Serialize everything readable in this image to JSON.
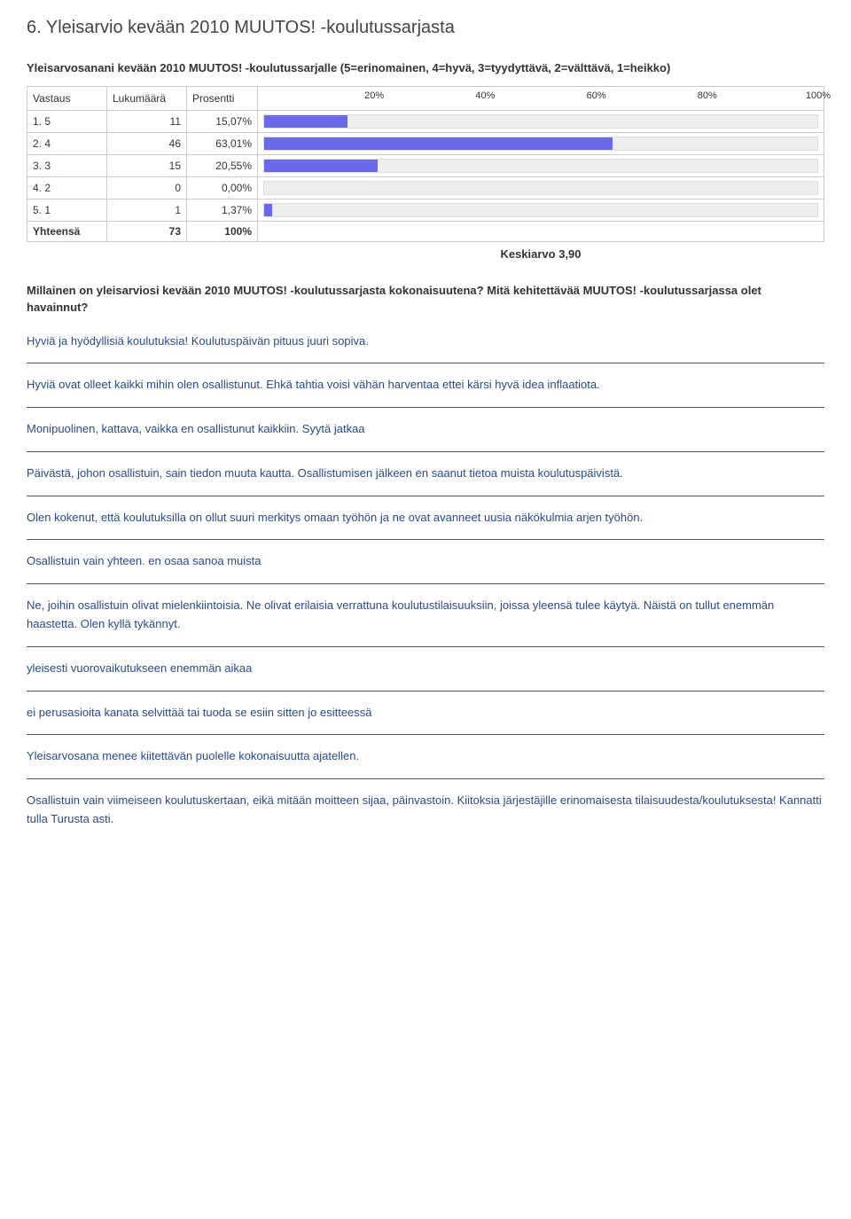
{
  "heading": "6. Yleisarvio kevään 2010 MUUTOS! -koulutussarjasta",
  "subtitle": "Yleisarvosanani kevään 2010 MUUTOS! -koulutussarjalle (5=erinomainen, 4=hyvä, 3=tyydyttävä, 2=välttävä, 1=heikko)",
  "table": {
    "headers": [
      "Vastaus",
      "Lukumäärä",
      "Prosentti"
    ],
    "axis": [
      "20%",
      "40%",
      "60%",
      "80%",
      "100%"
    ],
    "rows": [
      {
        "label": "1. 5",
        "count": "11",
        "pct": "15,07%",
        "bar": 15.07,
        "color": "#6a6ae8"
      },
      {
        "label": "2. 4",
        "count": "46",
        "pct": "63,01%",
        "bar": 63.01,
        "color": "#6a6ae8"
      },
      {
        "label": "3. 3",
        "count": "15",
        "pct": "20,55%",
        "bar": 20.55,
        "color": "#6a6ae8"
      },
      {
        "label": "4. 2",
        "count": "0",
        "pct": "0,00%",
        "bar": 0.0,
        "color": "#6a6ae8"
      },
      {
        "label": "5. 1",
        "count": "1",
        "pct": "1,37%",
        "bar": 1.37,
        "color": "#6a6ae8"
      }
    ],
    "total": {
      "label": "Yhteensä",
      "count": "73",
      "pct": "100%"
    }
  },
  "keskiarvo": "Keskiarvo 3,90",
  "question": "Millainen on yleisarviosi kevään 2010 MUUTOS! -koulutussarjasta kokonaisuutena? Mitä kehitettävää MUUTOS! -koulutussarjassa olet havainnut?",
  "responses": [
    "Hyviä ja hyödyllisiä koulutuksia! Koulutuspäivän pituus juuri sopiva.",
    "Hyviä ovat olleet kaikki mihin olen osallistunut. Ehkä tahtia voisi vähän harventaa ettei kärsi hyvä idea inflaatiota.",
    "Monipuolinen, kattava, vaikka en osallistunut kaikkiin. Syytä jatkaa",
    "Päivästä, johon osallistuin, sain tiedon muuta kautta. Osallistumisen jälkeen en saanut tietoa muista koulutuspäivistä.",
    "Olen kokenut, että koulutuksilla on ollut suuri merkitys omaan työhön ja ne ovat avanneet uusia näkökulmia arjen työhön.",
    "Osallistuin vain yhteen. en osaa sanoa muista",
    "Ne, joihin osallistuin olivat mielenkiintoisia. Ne olivat erilaisia verrattuna koulutustilaisuuksiin, joissa yleensä tulee käytyä. Näistä on tullut enemmän haastetta. Olen kyllä tykännyt.",
    "yleisesti vuorovaikutukseen enemmän aikaa",
    "ei perusasioita kanata selvittää tai tuoda se esiin sitten jo esitteessä",
    "Yleisarvosana menee kiitettävän puolelle kokonaisuutta ajatellen.",
    "Osallistuin vain viimeiseen koulutuskertaan, eikä mitään moitteen sijaa, päinvastoin. Kiitoksia järjestäjille erinomaisesta tilaisuudesta/koulutuksesta! Kannatti tulla Turusta asti."
  ]
}
